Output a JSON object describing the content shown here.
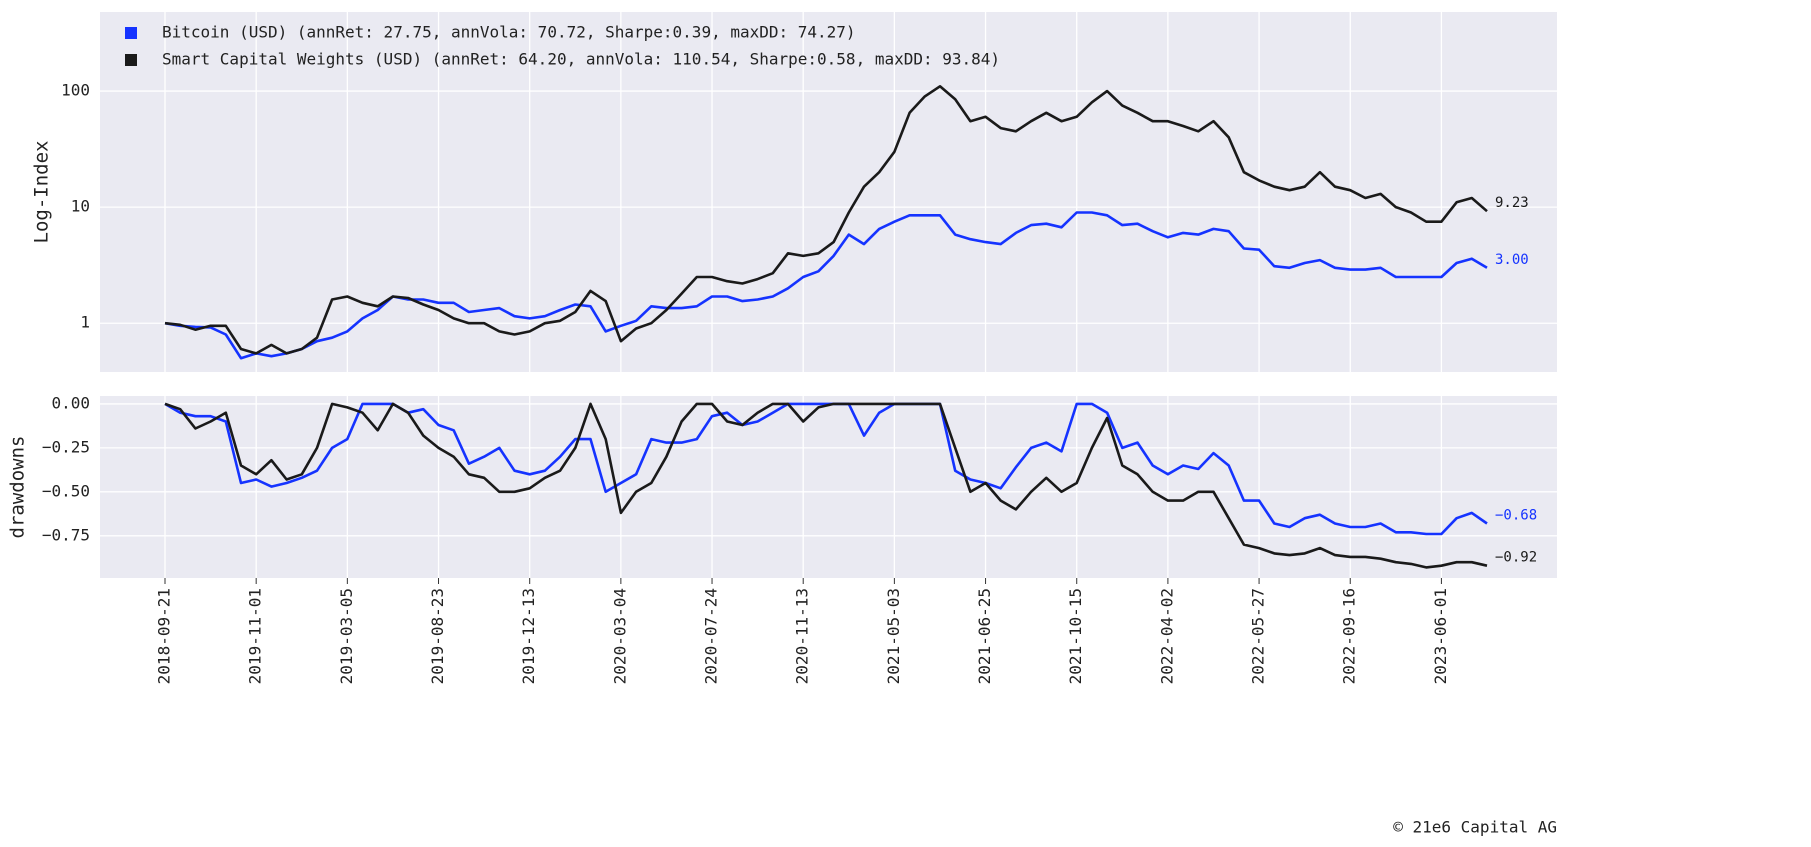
{
  "chart_data": [
    {
      "type": "line",
      "ylabel": "Log-Index",
      "log_scale": true,
      "grid": true,
      "legend": "upper left",
      "ylim": [
        0.38,
        480
      ],
      "yticks": [
        1,
        10,
        100
      ],
      "series": [
        {
          "name": "Bitcoin (USD) (annRet: 27.75, annVola: 70.72, Sharpe:0.39, maxDD: 74.27)",
          "color": "#1533ff",
          "end_label": "3.00",
          "values": [
            1.0,
            0.95,
            0.93,
            0.92,
            0.8,
            0.5,
            0.55,
            0.52,
            0.55,
            0.6,
            0.7,
            0.75,
            0.85,
            1.1,
            1.3,
            1.7,
            1.6,
            1.6,
            1.5,
            1.5,
            1.25,
            1.3,
            1.35,
            1.15,
            1.1,
            1.15,
            1.3,
            1.45,
            1.4,
            0.85,
            0.95,
            1.05,
            1.4,
            1.35,
            1.35,
            1.4,
            1.7,
            1.7,
            1.55,
            1.6,
            1.7,
            2.0,
            2.5,
            2.8,
            3.8,
            5.8,
            4.8,
            6.5,
            7.5,
            8.5,
            8.5,
            8.5,
            5.8,
            5.3,
            5.0,
            4.8,
            6.0,
            7.0,
            7.2,
            6.7,
            9.0,
            9.0,
            8.5,
            7.0,
            7.2,
            6.2,
            5.5,
            6.0,
            5.8,
            6.5,
            6.2,
            4.4,
            4.3,
            3.1,
            3.0,
            3.3,
            3.5,
            3.0,
            2.9,
            2.9,
            3.0,
            2.5,
            2.5,
            2.5,
            2.5,
            3.3,
            3.6,
            3.0
          ]
        },
        {
          "name": "Smart Capital Weights (USD) (annRet: 64.20, annVola: 110.54, Sharpe:0.58, maxDD: 93.84)",
          "color": "#1a1a1a",
          "end_label": "9.23",
          "values": [
            1.0,
            0.97,
            0.88,
            0.95,
            0.95,
            0.6,
            0.55,
            0.65,
            0.55,
            0.6,
            0.75,
            1.6,
            1.7,
            1.5,
            1.4,
            1.7,
            1.65,
            1.45,
            1.3,
            1.1,
            1.0,
            1.0,
            0.85,
            0.8,
            0.85,
            1.0,
            1.05,
            1.25,
            1.9,
            1.55,
            0.7,
            0.9,
            1.0,
            1.3,
            1.8,
            2.5,
            2.5,
            2.3,
            2.2,
            2.4,
            2.7,
            4.0,
            3.8,
            4.0,
            5.0,
            9.0,
            15,
            20,
            30,
            65,
            90,
            110,
            85,
            55,
            60,
            48,
            45,
            55,
            65,
            55,
            60,
            80,
            100,
            75,
            65,
            55,
            55,
            50,
            45,
            55,
            40,
            20,
            17,
            15,
            14,
            15,
            20,
            15,
            14,
            12,
            13,
            10,
            9,
            7.5,
            7.5,
            11,
            12,
            9.23
          ]
        }
      ]
    },
    {
      "type": "line",
      "ylabel": "drawdowns",
      "grid": true,
      "ylim": [
        -0.99,
        0.045
      ],
      "yticks": [
        {
          "value": 0,
          "label": "0.00"
        },
        {
          "value": -0.25,
          "label": "−0.25"
        },
        {
          "value": -0.5,
          "label": "−0.50"
        },
        {
          "value": -0.75,
          "label": "−0.75"
        }
      ],
      "categories": [
        "2018-09-21",
        null,
        null,
        null,
        null,
        null,
        "2019-11-01",
        null,
        null,
        null,
        null,
        null,
        "2019-03-05",
        null,
        null,
        null,
        null,
        null,
        "2019-08-23",
        null,
        null,
        null,
        null,
        null,
        "2019-12-13",
        null,
        null,
        null,
        null,
        null,
        "2020-03-04",
        null,
        null,
        null,
        null,
        null,
        "2020-07-24",
        null,
        null,
        null,
        null,
        null,
        "2020-11-13",
        null,
        null,
        null,
        null,
        null,
        "2021-05-03",
        null,
        null,
        null,
        null,
        null,
        "2021-06-25",
        null,
        null,
        null,
        null,
        null,
        "2021-10-15",
        null,
        null,
        null,
        null,
        null,
        "2022-04-02",
        null,
        null,
        null,
        null,
        null,
        "2022-05-27",
        null,
        null,
        null,
        null,
        null,
        "2022-09-16",
        null,
        null,
        null,
        null,
        null,
        "2023-06-01",
        null,
        null,
        null
      ],
      "series": [
        {
          "color": "#1533ff",
          "end_label": "−0.68",
          "values": [
            0,
            -0.05,
            -0.07,
            -0.07,
            -0.1,
            -0.45,
            -0.43,
            -0.47,
            -0.45,
            -0.42,
            -0.38,
            -0.25,
            -0.2,
            0,
            0,
            0,
            -0.05,
            -0.03,
            -0.12,
            -0.15,
            -0.34,
            -0.3,
            -0.25,
            -0.38,
            -0.4,
            -0.38,
            -0.3,
            -0.2,
            -0.2,
            -0.5,
            -0.45,
            -0.4,
            -0.2,
            -0.22,
            -0.22,
            -0.2,
            -0.07,
            -0.05,
            -0.12,
            -0.1,
            -0.05,
            0,
            0,
            0,
            0,
            0,
            -0.18,
            -0.05,
            0,
            0,
            0,
            0,
            -0.38,
            -0.43,
            -0.45,
            -0.48,
            -0.36,
            -0.25,
            -0.22,
            -0.27,
            0,
            0,
            -0.05,
            -0.25,
            -0.22,
            -0.35,
            -0.4,
            -0.35,
            -0.37,
            -0.28,
            -0.35,
            -0.55,
            -0.55,
            -0.68,
            -0.7,
            -0.65,
            -0.63,
            -0.68,
            -0.7,
            -0.7,
            -0.68,
            -0.73,
            -0.73,
            -0.74,
            -0.74,
            -0.65,
            -0.62,
            -0.68
          ]
        },
        {
          "color": "#1a1a1a",
          "end_label": "−0.92",
          "values": [
            0,
            -0.03,
            -0.14,
            -0.1,
            -0.05,
            -0.35,
            -0.4,
            -0.32,
            -0.43,
            -0.4,
            -0.25,
            0,
            -0.02,
            -0.05,
            -0.15,
            0,
            -0.05,
            -0.18,
            -0.25,
            -0.3,
            -0.4,
            -0.42,
            -0.5,
            -0.5,
            -0.48,
            -0.42,
            -0.38,
            -0.25,
            0,
            -0.2,
            -0.62,
            -0.5,
            -0.45,
            -0.3,
            -0.1,
            0,
            0,
            -0.1,
            -0.12,
            -0.05,
            0,
            0,
            -0.1,
            -0.02,
            0,
            0,
            0,
            0,
            0,
            0,
            0,
            0,
            -0.25,
            -0.5,
            -0.45,
            -0.55,
            -0.6,
            -0.5,
            -0.42,
            -0.5,
            -0.45,
            -0.25,
            -0.08,
            -0.35,
            -0.4,
            -0.5,
            -0.55,
            -0.55,
            -0.5,
            -0.5,
            -0.65,
            -0.8,
            -0.82,
            -0.85,
            -0.86,
            -0.85,
            -0.82,
            -0.86,
            -0.87,
            -0.87,
            -0.88,
            -0.9,
            -0.91,
            -0.93,
            -0.92,
            -0.9,
            -0.9,
            -0.92
          ]
        }
      ]
    }
  ],
  "footer": "© 21e6 Capital AG"
}
